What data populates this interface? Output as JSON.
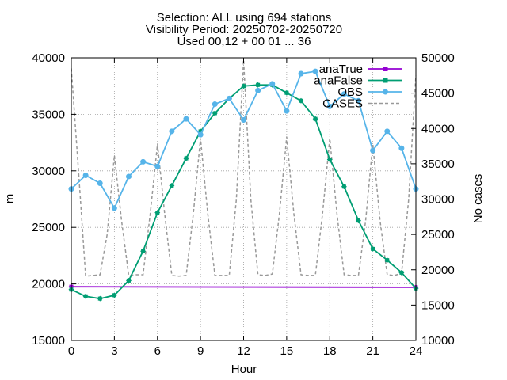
{
  "chart_data": {
    "type": "line",
    "title_lines": [
      "Selection: ALL using   694 stations",
      "Visibility   Period: 20250702-20250720",
      "Used 00,12 + 00 01 ... 36"
    ],
    "xlabel": "Hour",
    "ylabel": "m",
    "y2label": "No cases",
    "xlim": [
      0,
      24
    ],
    "ylim": [
      15000,
      40000
    ],
    "y2lim": [
      10000,
      50000
    ],
    "xticks": [
      "0",
      "3",
      "6",
      "9",
      "12",
      "15",
      "18",
      "21",
      "24"
    ],
    "yticks": [
      "15000",
      "20000",
      "25000",
      "30000",
      "35000",
      "40000"
    ],
    "y2ticks": [
      "10000",
      "15000",
      "20000",
      "25000",
      "30000",
      "35000",
      "40000",
      "45000",
      "50000"
    ],
    "grid": true,
    "legend_position": "top-right",
    "series": [
      {
        "name": "anaTrue",
        "color": "#9400d3",
        "marker": "square",
        "axis": "y",
        "x": [
          0,
          24
        ],
        "y": [
          19750,
          19700
        ]
      },
      {
        "name": "anaFalse",
        "color": "#009e73",
        "marker": "square",
        "axis": "y",
        "x": [
          0,
          1,
          2,
          3,
          4,
          5,
          6,
          7,
          8,
          9,
          10,
          11,
          12,
          13,
          14,
          15,
          16,
          17,
          18,
          19,
          20,
          21,
          22,
          23,
          24
        ],
        "y": [
          19500,
          18900,
          18700,
          19000,
          20300,
          22900,
          26300,
          28700,
          31100,
          33500,
          35100,
          36400,
          37500,
          37600,
          37600,
          36900,
          36200,
          34600,
          31000,
          28600,
          25600,
          23100,
          22100,
          21000,
          19600
        ]
      },
      {
        "name": "OBS",
        "color": "#56b4e9",
        "marker": "circle",
        "axis": "y",
        "x": [
          0,
          1,
          2,
          3,
          4,
          5,
          6,
          7,
          8,
          9,
          10,
          11,
          12,
          13,
          14,
          15,
          16,
          17,
          18,
          19,
          20,
          21,
          22,
          23,
          24
        ],
        "y": [
          28400,
          29600,
          28900,
          26700,
          29500,
          30800,
          30400,
          33500,
          34600,
          33200,
          35900,
          36400,
          34500,
          37100,
          37700,
          35300,
          38600,
          38800,
          35700,
          36800,
          36200,
          31800,
          33500,
          32000,
          28400
        ]
      },
      {
        "name": "CASES",
        "color": "#999999",
        "marker": "none",
        "dash": "4,3",
        "axis": "y2",
        "x": [
          0,
          0.5,
          1,
          1.5,
          2,
          2.5,
          3,
          3.5,
          4,
          4.5,
          5,
          5.5,
          6,
          6.5,
          7,
          7.5,
          8,
          8.5,
          9,
          9.5,
          10,
          10.5,
          11,
          11.5,
          12,
          12.5,
          13,
          13.5,
          14,
          14.5,
          15,
          15.5,
          16,
          16.5,
          17,
          17.5,
          18,
          18.5,
          19,
          19.5,
          20,
          20.5,
          21,
          21.5,
          22,
          22.5,
          23,
          23.5,
          24
        ],
        "y": [
          48500,
          34000,
          19100,
          19200,
          19300,
          25000,
          36200,
          27000,
          19200,
          19300,
          19300,
          28000,
          37800,
          28000,
          19200,
          19100,
          19200,
          28000,
          38600,
          28000,
          19200,
          19200,
          19200,
          30000,
          49700,
          30000,
          19300,
          19200,
          19400,
          28000,
          38800,
          28000,
          19300,
          19200,
          19200,
          28000,
          38600,
          28000,
          19300,
          19200,
          19200,
          27000,
          37800,
          27000,
          19300,
          19200,
          19500,
          30000,
          47500
        ]
      }
    ]
  }
}
